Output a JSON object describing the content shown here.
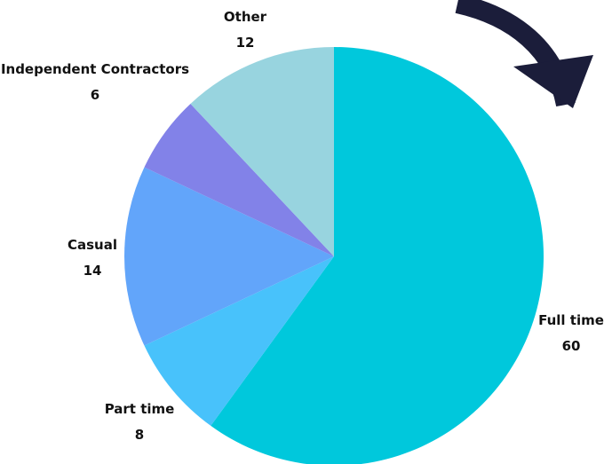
{
  "chart_data": {
    "type": "pie",
    "title": "",
    "categories": [
      "Full time",
      "Part time",
      "Casual",
      "Independent Contractors",
      "Other"
    ],
    "values": [
      60,
      8,
      14,
      6,
      12
    ],
    "colors": [
      "#00c8dc",
      "#48c2fb",
      "#62a5fa",
      "#8282e8",
      "#98d4df"
    ],
    "legend": "none",
    "labels": [
      {
        "name": "Full time",
        "value": "60"
      },
      {
        "name": "Part time",
        "value": "8"
      },
      {
        "name": "Casual",
        "value": "14"
      },
      {
        "name": "Independent Contractors",
        "value": "6"
      },
      {
        "name": "Other",
        "value": "12"
      }
    ]
  },
  "decoration": {
    "arrow_color": "#1b1d3a",
    "arrow_icon": "curved-arrow-down-right-icon"
  }
}
